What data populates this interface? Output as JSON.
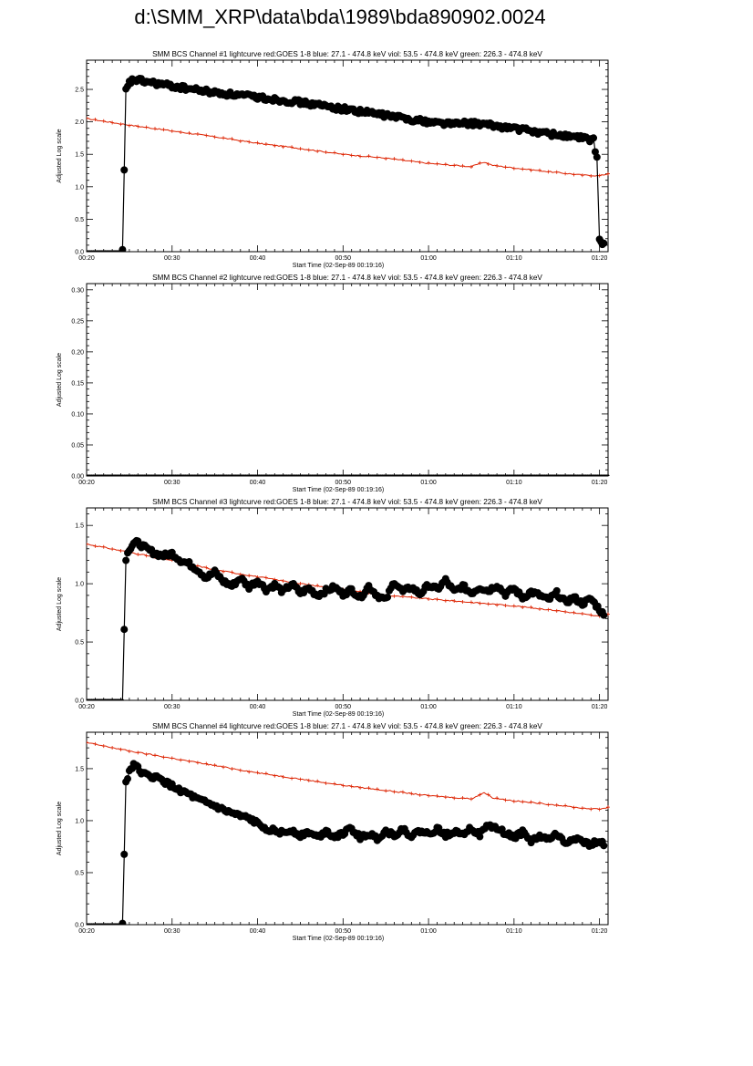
{
  "page_title": "d:\\SMM_XRP\\data\\bda\\1989\\bda890902.0024",
  "colors": {
    "red_series": "#dd2200",
    "black_series": "#000000"
  },
  "chart_data": [
    {
      "type": "line",
      "title": "SMM BCS Channel #1 lightcurve  red:GOES 1-8  blue: 27.1 - 474.8 keV  viol: 53.5 - 474.8 keV  green: 226.3 - 474.8 keV",
      "xlabel": "Start Time (02-Sep-89 00:19:16)",
      "ylabel": "Adjusted Log scale",
      "x_unit": "minutes after 00:00",
      "xlim": [
        20,
        81
      ],
      "ylim": [
        0,
        2.95
      ],
      "x_ticks": [
        20,
        30,
        40,
        50,
        60,
        70,
        80
      ],
      "x_tick_labels": [
        "00:20",
        "00:30",
        "00:40",
        "00:50",
        "01:00",
        "01:10",
        "01:20"
      ],
      "y_ticks": [
        0.0,
        0.5,
        1.0,
        1.5,
        2.0,
        2.5
      ],
      "y_tick_labels": [
        "0.0",
        "0.5",
        "1.0",
        "1.5",
        "2.0",
        "2.5"
      ],
      "series": [
        {
          "color": "#dd2200",
          "marker": "plus",
          "x": [
            20,
            25,
            30,
            35,
            40,
            45,
            50,
            55,
            60,
            65,
            66.5,
            67.5,
            70,
            75,
            78,
            80,
            81
          ],
          "y": [
            2.05,
            1.95,
            1.86,
            1.77,
            1.67,
            1.59,
            1.5,
            1.44,
            1.36,
            1.31,
            1.38,
            1.33,
            1.29,
            1.22,
            1.18,
            1.17,
            1.2
          ]
        },
        {
          "color": "#000000",
          "marker": "circle",
          "x": [
            20,
            24.2,
            24.6,
            25,
            25.5,
            26,
            30,
            35,
            40,
            45,
            50,
            55,
            60,
            63,
            65,
            67,
            70,
            75,
            78,
            79.3,
            79.7,
            80,
            80.5
          ],
          "y": [
            0,
            0,
            2.48,
            2.6,
            2.65,
            2.64,
            2.55,
            2.45,
            2.38,
            2.3,
            2.2,
            2.1,
            2.0,
            1.97,
            1.98,
            1.95,
            1.9,
            1.8,
            1.75,
            1.72,
            1.42,
            0.17,
            0.13
          ]
        }
      ]
    },
    {
      "type": "line",
      "title": "SMM BCS Channel #2 lightcurve  red:GOES 1-8  blue: 27.1 - 474.8 keV  viol: 53.5 - 474.8 keV  green: 226.3 - 474.8 keV",
      "xlabel": "Start Time (02-Sep-89 00:19:16)",
      "ylabel": "Adjusted Log scale",
      "x_unit": "minutes after 00:00",
      "xlim": [
        20,
        81
      ],
      "ylim": [
        0,
        0.31
      ],
      "x_ticks": [
        20,
        30,
        40,
        50,
        60,
        70,
        80
      ],
      "x_tick_labels": [
        "00:20",
        "00:30",
        "00:40",
        "00:50",
        "01:00",
        "01:10",
        "01:20"
      ],
      "y_ticks": [
        0.0,
        0.05,
        0.1,
        0.15,
        0.2,
        0.25,
        0.3
      ],
      "y_tick_labels": [
        "0.00",
        "0.05",
        "0.10",
        "0.15",
        "0.20",
        "0.25",
        "0.30"
      ],
      "series": [
        {
          "color": "#000000",
          "marker": "circle",
          "x": [
            20,
            81
          ],
          "y": [
            0,
            0
          ]
        }
      ]
    },
    {
      "type": "line",
      "title": "SMM BCS Channel #3 lightcurve  red:GOES 1-8  blue: 27.1 - 474.8 keV  viol: 53.5 - 474.8 keV  green: 226.3 - 474.8 keV",
      "xlabel": "Start Time (02-Sep-89 00:19:16)",
      "ylabel": "Adjusted Log scale",
      "x_unit": "minutes after 00:00",
      "xlim": [
        20,
        81
      ],
      "ylim": [
        0,
        1.65
      ],
      "x_ticks": [
        20,
        30,
        40,
        50,
        60,
        70,
        80
      ],
      "x_tick_labels": [
        "00:20",
        "00:30",
        "00:40",
        "00:50",
        "01:00",
        "01:10",
        "01:20"
      ],
      "y_ticks": [
        0.0,
        0.5,
        1.0,
        1.5
      ],
      "y_tick_labels": [
        "0.0",
        "0.5",
        "1.0",
        "1.5"
      ],
      "series": [
        {
          "color": "#dd2200",
          "marker": "plus",
          "x": [
            20,
            25,
            30,
            35,
            40,
            45,
            50,
            55,
            60,
            65,
            70,
            75,
            80,
            81
          ],
          "y": [
            1.34,
            1.27,
            1.2,
            1.12,
            1.06,
            1.0,
            0.95,
            0.9,
            0.87,
            0.84,
            0.81,
            0.77,
            0.72,
            0.74
          ]
        },
        {
          "color": "#000000",
          "marker": "circle",
          "x": [
            20,
            24.2,
            24.6,
            25,
            25.5,
            26,
            27,
            28,
            29,
            30,
            31,
            32,
            33,
            34,
            35,
            36,
            37,
            38,
            39,
            40,
            41,
            42,
            43,
            44,
            45,
            46,
            47,
            48,
            49,
            50,
            51,
            52,
            53,
            54,
            55,
            56,
            57,
            58,
            59,
            60,
            61,
            62,
            63,
            64,
            65,
            66,
            67,
            68,
            69,
            70,
            71,
            72,
            73,
            74,
            75,
            76,
            77,
            78,
            79,
            80,
            80.5
          ],
          "y": [
            0,
            0,
            1.22,
            1.3,
            1.35,
            1.35,
            1.3,
            1.26,
            1.24,
            1.26,
            1.2,
            1.17,
            1.12,
            1.05,
            1.1,
            1.02,
            0.98,
            1.05,
            0.97,
            1.03,
            0.95,
            0.99,
            0.93,
            1.0,
            0.92,
            0.96,
            0.9,
            0.94,
            0.97,
            0.91,
            0.95,
            0.88,
            0.98,
            0.9,
            0.86,
            1.02,
            0.93,
            0.97,
            0.91,
            0.99,
            0.95,
            1.03,
            0.93,
            0.98,
            0.92,
            0.97,
            0.94,
            0.99,
            0.91,
            0.96,
            0.88,
            0.93,
            0.9,
            0.86,
            0.92,
            0.84,
            0.88,
            0.83,
            0.87,
            0.78,
            0.73
          ]
        }
      ]
    },
    {
      "type": "line",
      "title": "SMM BCS Channel #4 lightcurve  red:GOES 1-8  blue: 27.1 - 474.8 keV  viol: 53.5 - 474.8 keV  green: 226.3 - 474.8 keV",
      "xlabel": "Start Time (02-Sep-89 00:19:16)",
      "ylabel": "Adjusted Log scale",
      "x_unit": "minutes after 00:00",
      "xlim": [
        20,
        81
      ],
      "ylim": [
        0,
        1.85
      ],
      "x_ticks": [
        20,
        30,
        40,
        50,
        60,
        70,
        80
      ],
      "x_tick_labels": [
        "00:20",
        "00:30",
        "00:40",
        "00:50",
        "01:00",
        "01:10",
        "01:20"
      ],
      "y_ticks": [
        0.0,
        0.5,
        1.0,
        1.5
      ],
      "y_tick_labels": [
        "0.0",
        "0.5",
        "1.0",
        "1.5"
      ],
      "series": [
        {
          "color": "#dd2200",
          "marker": "plus",
          "x": [
            20,
            25,
            30,
            35,
            40,
            45,
            50,
            55,
            60,
            65,
            66.5,
            67.5,
            70,
            75,
            78,
            80,
            81
          ],
          "y": [
            1.75,
            1.67,
            1.6,
            1.53,
            1.46,
            1.4,
            1.34,
            1.29,
            1.24,
            1.21,
            1.27,
            1.22,
            1.19,
            1.15,
            1.12,
            1.11,
            1.13
          ]
        },
        {
          "color": "#000000",
          "marker": "circle",
          "x": [
            20,
            24.2,
            24.6,
            25,
            25.5,
            26,
            27,
            28,
            29,
            30,
            31,
            32,
            33,
            34,
            35,
            36,
            37,
            38,
            39,
            40,
            41,
            42,
            43,
            44,
            45,
            46,
            47,
            48,
            49,
            50,
            51,
            52,
            53,
            54,
            55,
            56,
            57,
            58,
            59,
            60,
            61,
            62,
            63,
            64,
            65,
            66,
            67,
            68,
            69,
            70,
            71,
            72,
            73,
            74,
            75,
            76,
            77,
            78,
            79,
            80,
            80.5
          ],
          "y": [
            0,
            0,
            1.37,
            1.47,
            1.55,
            1.5,
            1.43,
            1.42,
            1.38,
            1.33,
            1.29,
            1.25,
            1.2,
            1.17,
            1.14,
            1.1,
            1.07,
            1.04,
            1.02,
            0.97,
            0.93,
            0.9,
            0.88,
            0.91,
            0.86,
            0.89,
            0.84,
            0.9,
            0.85,
            0.88,
            0.92,
            0.84,
            0.87,
            0.83,
            0.9,
            0.86,
            0.92,
            0.85,
            0.9,
            0.87,
            0.92,
            0.86,
            0.9,
            0.88,
            0.93,
            0.86,
            0.96,
            0.92,
            0.88,
            0.84,
            0.89,
            0.8,
            0.85,
            0.82,
            0.87,
            0.78,
            0.84,
            0.8,
            0.76,
            0.82,
            0.76
          ]
        }
      ]
    }
  ]
}
